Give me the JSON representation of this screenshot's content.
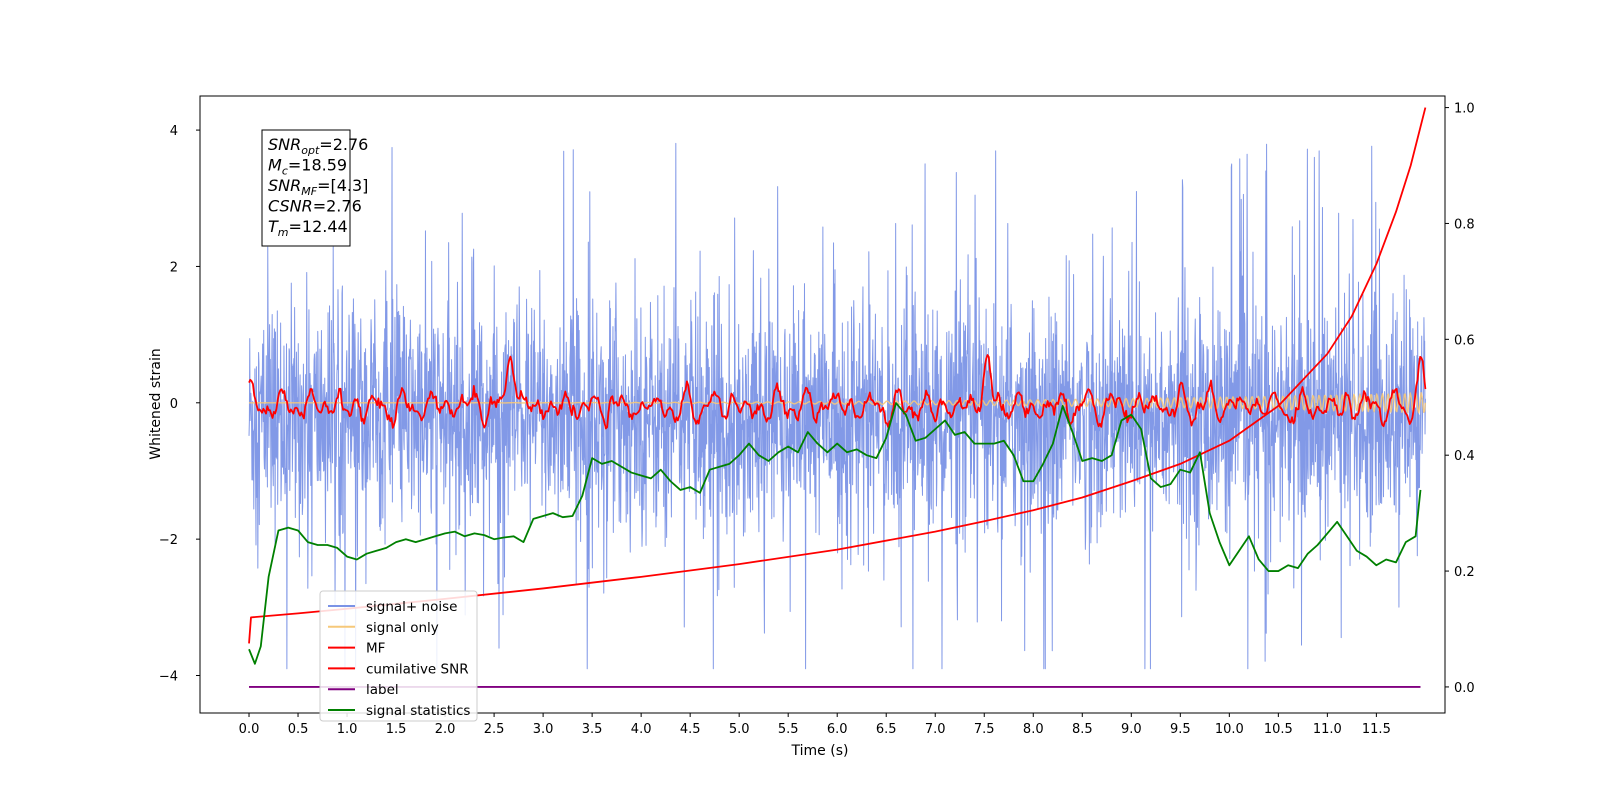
{
  "chart_data": {
    "type": "line",
    "xlabel": "Time (s)",
    "ylabel": "Whitened strain",
    "y2label": "",
    "xlim": [
      -0.5,
      12.2
    ],
    "ylim": [
      -4.55,
      4.5
    ],
    "y2lim": [
      -0.045,
      1.02
    ],
    "x_ticks": [
      0.0,
      0.5,
      1.0,
      1.5,
      2.0,
      2.5,
      3.0,
      3.5,
      4.0,
      4.5,
      5.0,
      5.5,
      6.0,
      6.5,
      7.0,
      7.5,
      8.0,
      8.5,
      9.0,
      9.5,
      10.0,
      10.5,
      11.0,
      11.5
    ],
    "x_tick_labels": [
      "0.0",
      "0.5",
      "1.0",
      "1.5",
      "2.0",
      "2.5",
      "3.0",
      "3.5",
      "4.0",
      "4.5",
      "5.0",
      "5.5",
      "6.0",
      "6.5",
      "7.0",
      "7.5",
      "8.0",
      "8.5",
      "9.0",
      "9.5",
      "10.0",
      "10.5",
      "11.0",
      "11.5"
    ],
    "y_ticks": [
      -4,
      -2,
      0,
      2,
      4
    ],
    "y_tick_labels": [
      "−4",
      "−2",
      "0",
      "2",
      "4"
    ],
    "y2_ticks": [
      0.0,
      0.2,
      0.4,
      0.6,
      0.8,
      1.0
    ],
    "y2_tick_labels": [
      "0.0",
      "0.2",
      "0.4",
      "0.6",
      "0.8",
      "1.0"
    ],
    "grid": false,
    "legend_position": "lower-left",
    "info_box": {
      "lines": [
        {
          "base": "SNR",
          "sub": "opt",
          "value": "=2.76"
        },
        {
          "base": "M",
          "sub": "c",
          "value": "=18.59"
        },
        {
          "base": "SNR",
          "sub": "MF",
          "value": "=[4.3]"
        },
        {
          "base": "CSNR",
          "sub": "",
          "value": "=2.76"
        },
        {
          "base": "T",
          "sub": "m",
          "value": "=12.44"
        }
      ]
    },
    "series": [
      {
        "name": "signal+ noise",
        "color": "#7b93e6",
        "axis": "left",
        "style": "noise",
        "x_range": [
          0.0,
          12.0
        ],
        "band": [
          -1.75,
          1.3
        ],
        "extreme_range": [
          -3.9,
          4.1
        ]
      },
      {
        "name": "signal only",
        "color": "#f6c87a",
        "axis": "left",
        "style": "chirp",
        "x_range": [
          0.0,
          12.0
        ],
        "amplitude_end": 0.15
      },
      {
        "name": "MF",
        "color": "#ff0000",
        "axis": "left",
        "style": "wiggle",
        "x_range": [
          0.0,
          12.0
        ],
        "level": -0.05,
        "spread": 0.3,
        "peaks": [
          {
            "x": 0.0,
            "y": 0.3
          },
          {
            "x": 2.67,
            "y": 1.0
          },
          {
            "x": 7.52,
            "y": 0.75
          },
          {
            "x": 11.95,
            "y": 0.6
          }
        ]
      },
      {
        "name": "cumilative SNR",
        "color": "#ff0000",
        "axis": "right",
        "x": [
          0.0,
          0.02,
          0.5,
          1.0,
          2.0,
          3.0,
          4.0,
          5.0,
          6.0,
          7.0,
          7.5,
          8.0,
          8.5,
          9.0,
          9.5,
          10.0,
          10.5,
          11.0,
          11.25,
          11.5,
          11.7,
          11.85,
          12.0
        ],
        "y": [
          0.075,
          0.12,
          0.127,
          0.135,
          0.152,
          0.17,
          0.19,
          0.212,
          0.237,
          0.268,
          0.286,
          0.305,
          0.327,
          0.355,
          0.385,
          0.425,
          0.485,
          0.575,
          0.64,
          0.73,
          0.82,
          0.9,
          1.0
        ]
      },
      {
        "name": "label",
        "color": "#800080",
        "axis": "right",
        "x": [
          0.0,
          11.95
        ],
        "y": [
          0.0,
          0.0
        ]
      },
      {
        "name": "signal statistics",
        "color": "#008000",
        "axis": "right",
        "x": [
          0.0,
          0.06,
          0.12,
          0.2,
          0.3,
          0.4,
          0.5,
          0.6,
          0.7,
          0.8,
          0.9,
          1.0,
          1.1,
          1.2,
          1.3,
          1.4,
          1.5,
          1.6,
          1.7,
          1.8,
          1.9,
          2.0,
          2.1,
          2.2,
          2.3,
          2.4,
          2.5,
          2.6,
          2.7,
          2.8,
          2.9,
          3.0,
          3.1,
          3.2,
          3.3,
          3.4,
          3.5,
          3.6,
          3.7,
          3.8,
          3.9,
          4.0,
          4.1,
          4.2,
          4.3,
          4.4,
          4.5,
          4.6,
          4.7,
          4.8,
          4.9,
          5.0,
          5.1,
          5.2,
          5.3,
          5.4,
          5.5,
          5.6,
          5.7,
          5.8,
          5.9,
          6.0,
          6.1,
          6.2,
          6.3,
          6.4,
          6.5,
          6.6,
          6.7,
          6.8,
          6.9,
          7.0,
          7.1,
          7.2,
          7.3,
          7.4,
          7.5,
          7.6,
          7.7,
          7.8,
          7.9,
          8.0,
          8.1,
          8.2,
          8.3,
          8.4,
          8.5,
          8.6,
          8.7,
          8.8,
          8.9,
          9.0,
          9.1,
          9.2,
          9.3,
          9.4,
          9.5,
          9.6,
          9.7,
          9.8,
          9.9,
          10.0,
          10.1,
          10.2,
          10.3,
          10.4,
          10.5,
          10.6,
          10.7,
          10.8,
          10.9,
          11.0,
          11.1,
          11.2,
          11.3,
          11.4,
          11.5,
          11.6,
          11.7,
          11.8,
          11.9,
          11.95
        ],
        "y": [
          0.065,
          0.04,
          0.07,
          0.19,
          0.27,
          0.275,
          0.27,
          0.25,
          0.245,
          0.245,
          0.24,
          0.225,
          0.22,
          0.23,
          0.235,
          0.24,
          0.25,
          0.255,
          0.25,
          0.255,
          0.26,
          0.265,
          0.268,
          0.26,
          0.265,
          0.262,
          0.255,
          0.258,
          0.26,
          0.25,
          0.29,
          0.295,
          0.3,
          0.293,
          0.295,
          0.33,
          0.395,
          0.385,
          0.39,
          0.38,
          0.37,
          0.365,
          0.36,
          0.375,
          0.355,
          0.34,
          0.345,
          0.335,
          0.375,
          0.38,
          0.385,
          0.4,
          0.42,
          0.4,
          0.39,
          0.405,
          0.415,
          0.405,
          0.44,
          0.42,
          0.405,
          0.42,
          0.405,
          0.41,
          0.4,
          0.395,
          0.43,
          0.49,
          0.47,
          0.425,
          0.43,
          0.445,
          0.46,
          0.435,
          0.44,
          0.42,
          0.42,
          0.42,
          0.425,
          0.4,
          0.355,
          0.355,
          0.385,
          0.42,
          0.485,
          0.44,
          0.39,
          0.395,
          0.39,
          0.4,
          0.46,
          0.47,
          0.445,
          0.36,
          0.345,
          0.35,
          0.375,
          0.37,
          0.405,
          0.3,
          0.25,
          0.21,
          0.235,
          0.26,
          0.22,
          0.2,
          0.2,
          0.21,
          0.205,
          0.23,
          0.245,
          0.265,
          0.285,
          0.26,
          0.235,
          0.225,
          0.21,
          0.22,
          0.215,
          0.25,
          0.26,
          0.34
        ]
      }
    ]
  }
}
